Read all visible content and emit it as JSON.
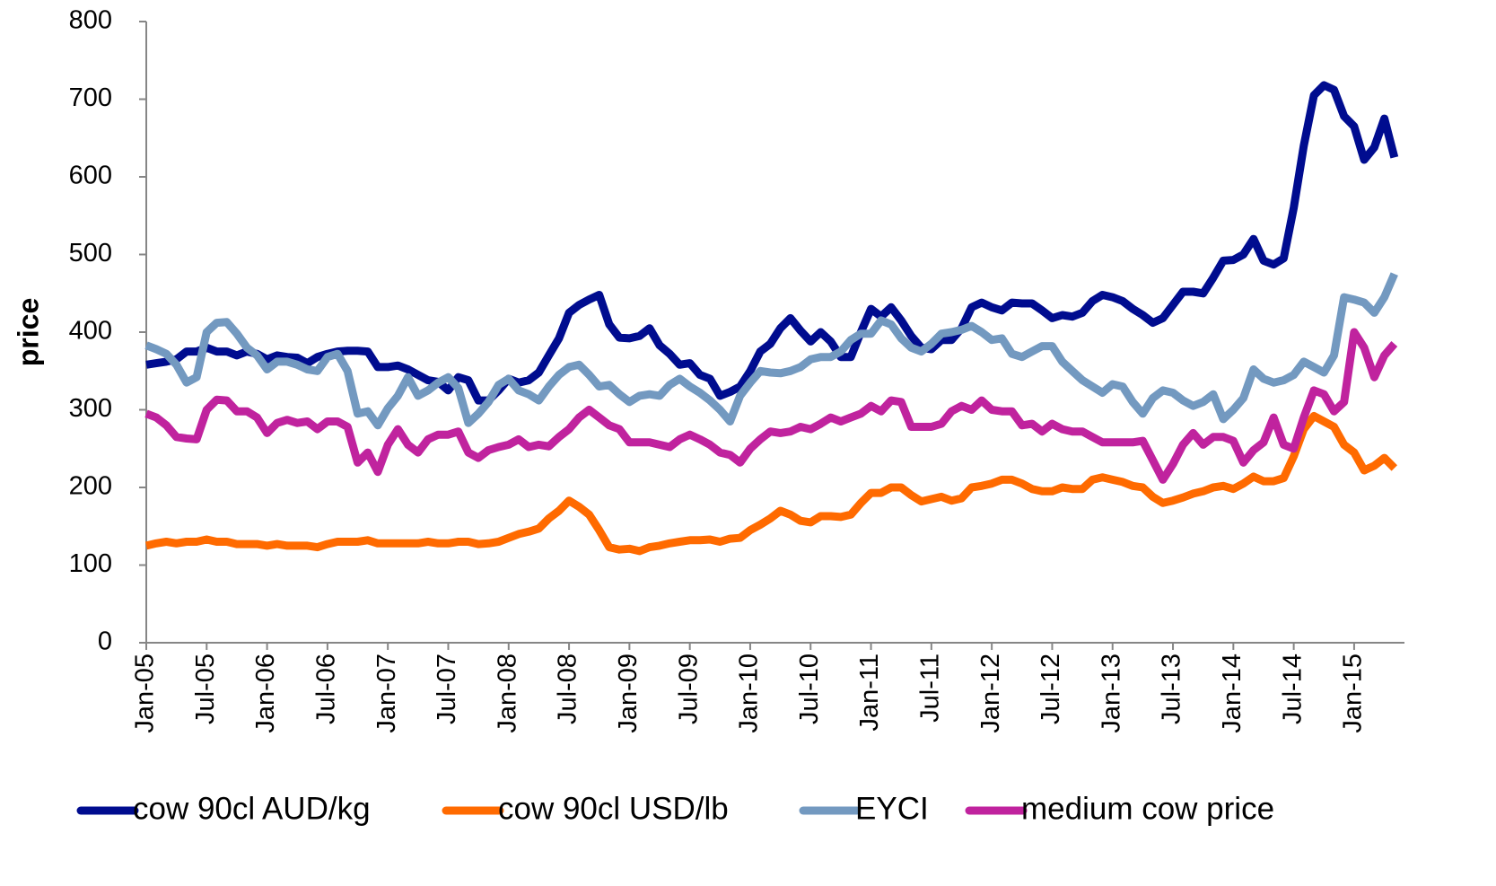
{
  "chart_data": {
    "type": "line",
    "y_label": "price",
    "categories": [
      "Jan-05",
      null,
      null,
      null,
      null,
      null,
      "Jul-05",
      null,
      null,
      null,
      null,
      null,
      "Jan-06",
      null,
      null,
      null,
      null,
      null,
      "Jul-06",
      null,
      null,
      null,
      null,
      null,
      "Jan-07",
      null,
      null,
      null,
      null,
      null,
      "Jul-07",
      null,
      null,
      null,
      null,
      null,
      "Jan-08",
      null,
      null,
      null,
      null,
      null,
      "Jul-08",
      null,
      null,
      null,
      null,
      null,
      "Jan-09",
      null,
      null,
      null,
      null,
      null,
      "Jul-09",
      null,
      null,
      null,
      null,
      null,
      "Jan-10",
      null,
      null,
      null,
      null,
      null,
      "Jul-10",
      null,
      null,
      null,
      null,
      null,
      "Jan-11",
      null,
      null,
      null,
      null,
      null,
      "Jul-11",
      null,
      null,
      null,
      null,
      null,
      "Jan-12",
      null,
      null,
      null,
      null,
      null,
      "Jul-12",
      null,
      null,
      null,
      null,
      null,
      "Jan-13",
      null,
      null,
      null,
      null,
      null,
      "Jul-13",
      null,
      null,
      null,
      null,
      null,
      "Jan-14",
      null,
      null,
      null,
      null,
      null,
      "Jul-14",
      null,
      null,
      null,
      null,
      null,
      "Jan-15",
      null,
      null,
      null,
      null
    ],
    "ylim": [
      0,
      800
    ],
    "yticks": [
      0,
      100,
      200,
      300,
      400,
      500,
      600,
      700,
      800
    ],
    "grid": false,
    "legend": "bottom",
    "series": [
      {
        "name": "cow 90cl AUD/kg",
        "color": "#000c8f",
        "values": [
          358,
          360,
          362,
          365,
          375,
          375,
          380,
          375,
          375,
          370,
          375,
          372,
          365,
          370,
          368,
          367,
          360,
          368,
          372,
          375,
          376,
          376,
          375,
          355,
          355,
          357,
          352,
          345,
          338,
          336,
          325,
          342,
          338,
          312,
          312,
          325,
          340,
          335,
          338,
          348,
          370,
          392,
          425,
          435,
          442,
          448,
          410,
          393,
          392,
          395,
          405,
          383,
          372,
          358,
          360,
          345,
          340,
          318,
          323,
          330,
          350,
          375,
          385,
          405,
          418,
          402,
          388,
          400,
          388,
          368,
          368,
          400,
          430,
          420,
          432,
          415,
          395,
          380,
          378,
          390,
          390,
          405,
          432,
          438,
          432,
          428,
          438,
          437,
          437,
          428,
          418,
          422,
          420,
          425,
          440,
          448,
          445,
          440,
          430,
          422,
          412,
          418,
          435,
          452,
          452,
          450,
          470,
          492,
          493,
          500,
          520,
          492,
          487,
          495,
          560,
          640,
          705,
          718,
          712,
          678,
          665,
          622,
          638,
          675,
          625
        ]
      },
      {
        "name": "cow 90cl USD/lb",
        "color": "#ff6a00",
        "values": [
          125,
          128,
          130,
          128,
          130,
          130,
          133,
          130,
          130,
          127,
          127,
          127,
          125,
          127,
          125,
          125,
          125,
          123,
          127,
          130,
          130,
          130,
          132,
          128,
          128,
          128,
          128,
          128,
          130,
          128,
          128,
          130,
          130,
          127,
          128,
          130,
          135,
          140,
          143,
          147,
          160,
          170,
          183,
          175,
          165,
          145,
          123,
          120,
          121,
          118,
          123,
          125,
          128,
          130,
          132,
          132,
          133,
          130,
          134,
          135,
          145,
          152,
          160,
          170,
          165,
          157,
          155,
          163,
          163,
          162,
          165,
          180,
          193,
          193,
          200,
          200,
          190,
          182,
          185,
          188,
          183,
          186,
          200,
          202,
          205,
          210,
          210,
          205,
          198,
          195,
          195,
          200,
          198,
          198,
          210,
          213,
          210,
          207,
          202,
          200,
          188,
          180,
          183,
          187,
          192,
          195,
          200,
          202,
          198,
          205,
          214,
          208,
          208,
          212,
          240,
          275,
          292,
          285,
          278,
          255,
          245,
          222,
          228,
          238,
          225
        ]
      },
      {
        "name": "EYCI",
        "color": "#7399c0",
        "values": [
          383,
          378,
          372,
          358,
          335,
          342,
          400,
          412,
          413,
          398,
          380,
          370,
          352,
          362,
          362,
          358,
          352,
          350,
          368,
          372,
          350,
          295,
          298,
          280,
          302,
          318,
          342,
          318,
          325,
          335,
          342,
          328,
          283,
          295,
          310,
          332,
          340,
          325,
          320,
          312,
          330,
          345,
          355,
          358,
          345,
          330,
          332,
          320,
          310,
          318,
          320,
          318,
          332,
          340,
          330,
          322,
          312,
          300,
          285,
          318,
          335,
          350,
          348,
          347,
          350,
          355,
          365,
          368,
          368,
          375,
          390,
          398,
          398,
          415,
          410,
          392,
          380,
          375,
          385,
          398,
          400,
          403,
          408,
          400,
          390,
          392,
          372,
          368,
          375,
          382,
          382,
          362,
          350,
          338,
          330,
          322,
          333,
          330,
          310,
          295,
          315,
          325,
          322,
          312,
          305,
          310,
          320,
          288,
          300,
          315,
          352,
          340,
          335,
          338,
          345,
          362,
          355,
          348,
          370,
          445,
          442,
          438,
          425,
          445,
          475
        ]
      },
      {
        "name": "medium cow price",
        "color": "#c0239e",
        "values": [
          295,
          290,
          280,
          265,
          263,
          262,
          300,
          313,
          312,
          298,
          298,
          290,
          270,
          283,
          287,
          283,
          285,
          275,
          285,
          285,
          278,
          232,
          245,
          220,
          255,
          275,
          255,
          245,
          262,
          268,
          268,
          272,
          245,
          238,
          248,
          252,
          255,
          262,
          252,
          255,
          253,
          265,
          275,
          290,
          300,
          290,
          280,
          275,
          258,
          258,
          258,
          255,
          252,
          262,
          268,
          262,
          255,
          245,
          242,
          232,
          250,
          262,
          272,
          270,
          272,
          278,
          275,
          282,
          290,
          285,
          290,
          295,
          305,
          298,
          312,
          310,
          278,
          278,
          278,
          282,
          298,
          305,
          300,
          312,
          300,
          298,
          298,
          280,
          282,
          272,
          282,
          275,
          272,
          272,
          265,
          258,
          258,
          258,
          258,
          260,
          235,
          210,
          230,
          255,
          270,
          255,
          265,
          265,
          260,
          232,
          248,
          258,
          290,
          255,
          250,
          290,
          325,
          320,
          298,
          310,
          400,
          380,
          342,
          370,
          385
        ]
      }
    ]
  }
}
